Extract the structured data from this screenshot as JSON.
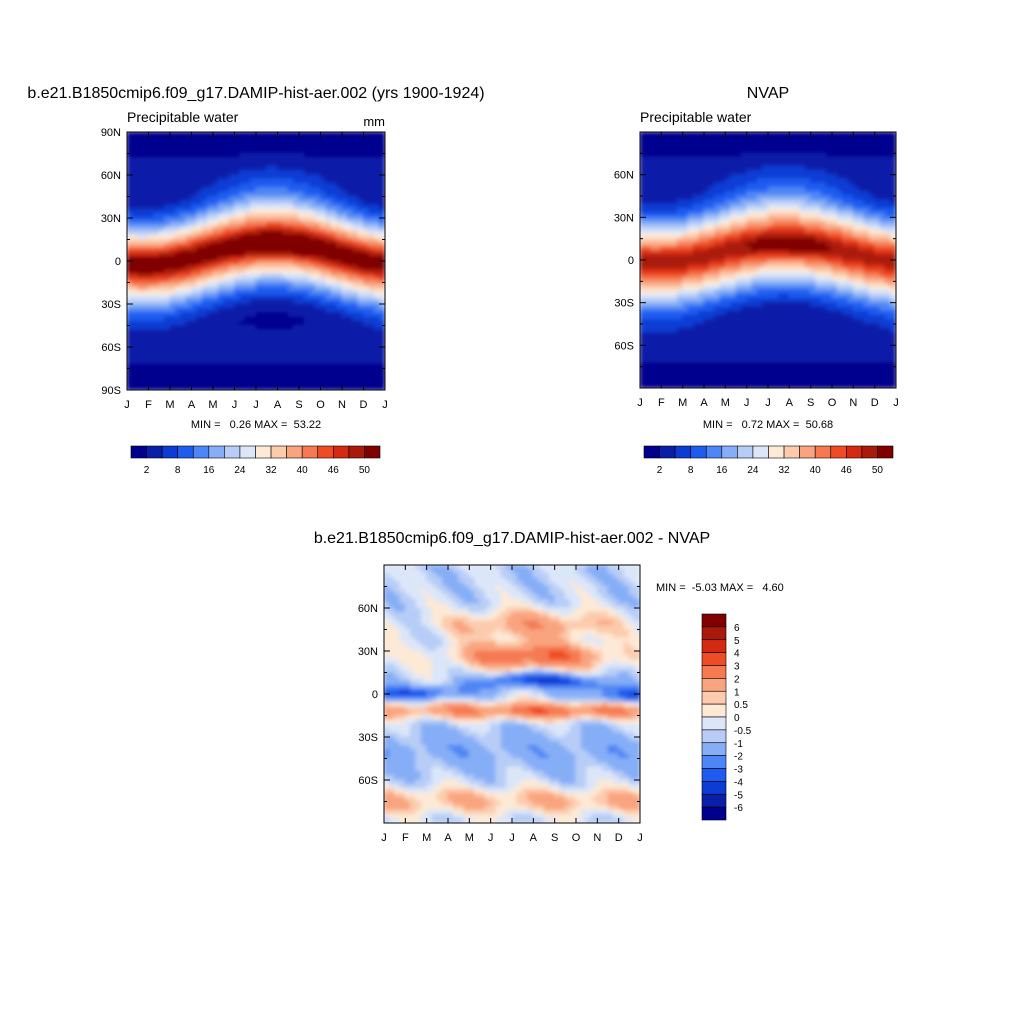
{
  "chart_data": [
    {
      "type": "heatmap",
      "title": "b.e21.B1850cmip6.f09_g17.DAMIP-hist-aer.002 (yrs 1900-1924)",
      "subtitle": "Precipitable water",
      "units": "mm",
      "x_ticks": [
        "J",
        "F",
        "M",
        "A",
        "M",
        "J",
        "J",
        "A",
        "S",
        "O",
        "N",
        "D",
        "J"
      ],
      "y_ticks": [
        "90N",
        "60N",
        "30N",
        "0",
        "30S",
        "60S",
        "90S"
      ],
      "ylim": [
        -90,
        90
      ],
      "stats_text": "MIN =   0.26 MAX =  53.22",
      "colorbar_labels": [
        "2",
        "8",
        "16",
        "24",
        "32",
        "40",
        "46",
        "50"
      ],
      "colorbar_colors": [
        "#00008f",
        "#0a1fa8",
        "#0c3cd4",
        "#1e5cf0",
        "#4f86f5",
        "#86aef7",
        "#b7cdf7",
        "#dbe6f9",
        "#fde9d6",
        "#fccbad",
        "#f9a47f",
        "#f57a52",
        "#ef4b24",
        "#d42a12",
        "#a91a0b",
        "#800000"
      ],
      "amplitude": 53,
      "features": {
        "eq_lat": 5,
        "eq_shift": 8,
        "eq_width": 19,
        "polar_n": 0.2,
        "polar_s": 0.03
      }
    },
    {
      "type": "heatmap",
      "title": "NVAP",
      "subtitle": "Precipitable water",
      "x_ticks": [
        "J",
        "F",
        "M",
        "A",
        "M",
        "J",
        "J",
        "A",
        "S",
        "O",
        "N",
        "D",
        "J"
      ],
      "y_ticks": [
        "60N",
        "30N",
        "0",
        "30S",
        "60S"
      ],
      "ylim": [
        -90,
        90
      ],
      "stats_text": "MIN =   0.72 MAX =  50.68",
      "colorbar_labels": [
        "2",
        "8",
        "16",
        "24",
        "32",
        "40",
        "46",
        "50"
      ],
      "colorbar_colors": [
        "#00008f",
        "#0a1fa8",
        "#0c3cd4",
        "#1e5cf0",
        "#4f86f5",
        "#86aef7",
        "#b7cdf7",
        "#dbe6f9",
        "#fde9d6",
        "#fccbad",
        "#f9a47f",
        "#f57a52",
        "#ef4b24",
        "#d42a12",
        "#a91a0b",
        "#800000"
      ],
      "amplitude": 50,
      "features": {
        "eq_lat": 5,
        "eq_shift": 7,
        "eq_width": 20,
        "polar_n": 0.2,
        "polar_s": 0.05
      }
    },
    {
      "type": "heatmap",
      "title": "b.e21.B1850cmip6.f09_g17.DAMIP-hist-aer.002 - NVAP",
      "x_ticks": [
        "J",
        "F",
        "M",
        "A",
        "M",
        "J",
        "J",
        "A",
        "S",
        "O",
        "N",
        "D",
        "J"
      ],
      "y_ticks": [
        "60N",
        "30N",
        "0",
        "30S",
        "60S"
      ],
      "ylim": [
        -90,
        90
      ],
      "stats_text": "MIN =  -5.03 MAX =   4.60",
      "colorbar_labels": [
        "6",
        "5",
        "4",
        "3",
        "2",
        "1",
        "0.5",
        "0",
        "-0.5",
        "-1",
        "-2",
        "-3",
        "-4",
        "-5",
        "-6"
      ],
      "colorbar_colors": [
        "#800000",
        "#a91a0b",
        "#d42a12",
        "#ef4b24",
        "#f57a52",
        "#f9a47f",
        "#fccbad",
        "#fde9d6",
        "#dbe6f9",
        "#b7cdf7",
        "#86aef7",
        "#4f86f5",
        "#1e5cf0",
        "#0c3cd4",
        "#0a1fa8",
        "#00008f"
      ]
    }
  ]
}
